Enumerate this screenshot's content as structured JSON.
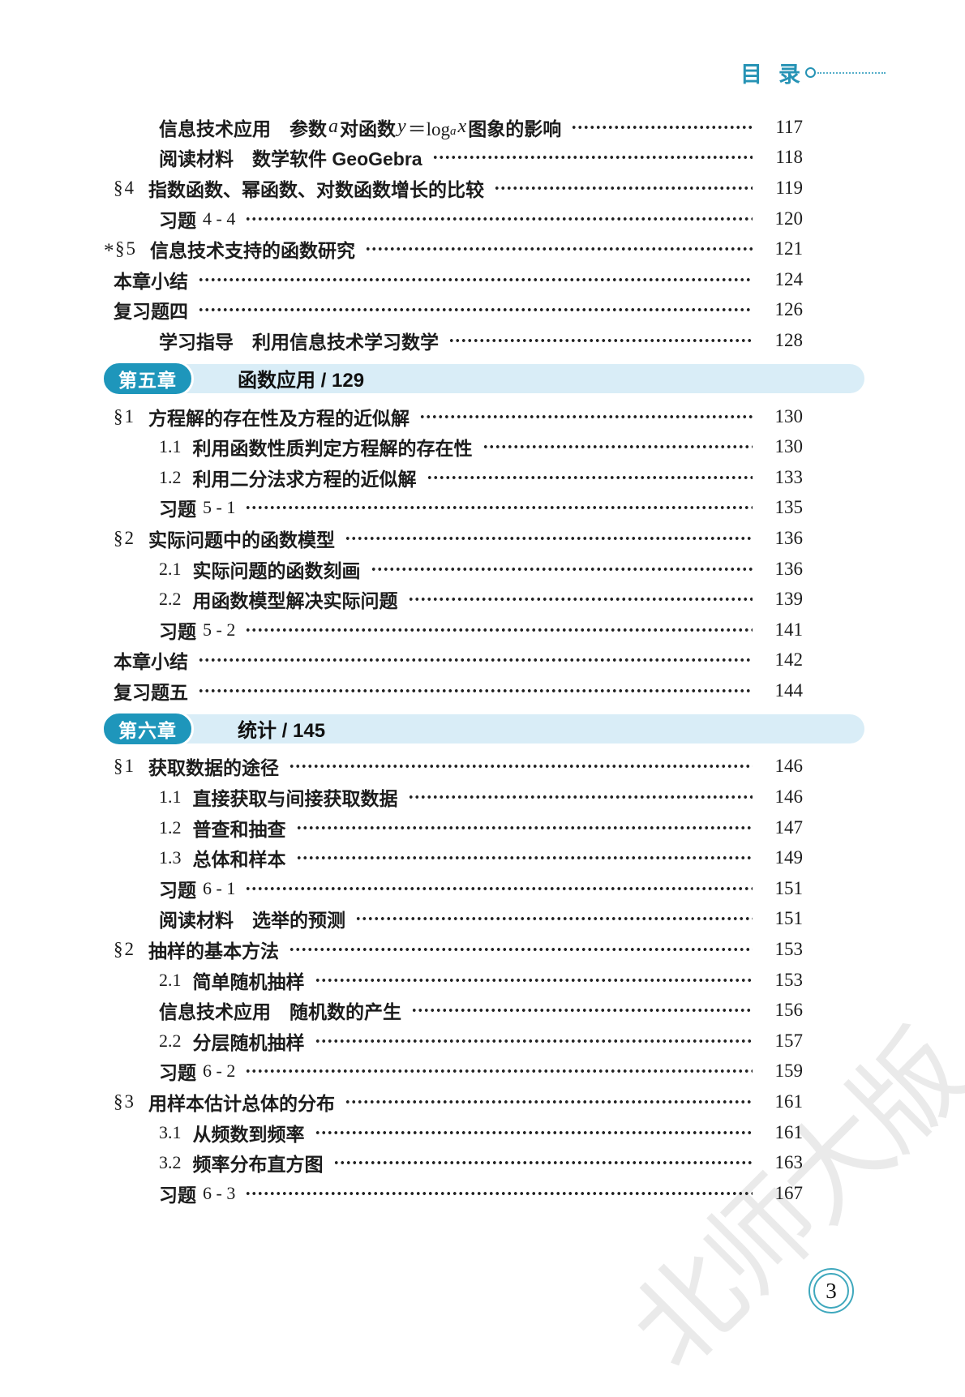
{
  "header": {
    "title": "目录"
  },
  "colors": {
    "accent_teal": "#2693b5",
    "band_light_blue": "#d9edf7",
    "badge_teal": "#1e96bb",
    "page_circle_teal": "#3fa8bd"
  },
  "chapters": {
    "ch5": {
      "badge": "第五章",
      "title": "函数应用 / 129"
    },
    "ch6": {
      "badge": "第六章",
      "title": "统计 / 145"
    }
  },
  "toc": {
    "rows": [
      {
        "t1": "信息技术应用　参数 ",
        "i1": "a",
        "t2": " 对函数 ",
        "i2": "y",
        "t3": "＝log",
        "sub": "a",
        "i3": "x",
        "t4": " 图象的影响",
        "page": "117"
      },
      {
        "title": "阅读材料　数学软件 GeoGebra",
        "page": "118"
      },
      {
        "num": "§4",
        "title": "指数函数、幂函数、对数函数增长的比较",
        "page": "119"
      },
      {
        "label": "习题",
        "num": "4 - 4",
        "page": "120"
      },
      {
        "star": "*",
        "num": "§5",
        "title": "信息技术支持的函数研究",
        "page": "121"
      },
      {
        "title": "本章小结",
        "page": "124"
      },
      {
        "title": "复习题四",
        "page": "126"
      },
      {
        "title": "学习指导　利用信息技术学习数学",
        "page": "128"
      },
      {
        "num": "§1",
        "title": "方程解的存在性及方程的近似解",
        "page": "130"
      },
      {
        "num": "1.1",
        "title": "利用函数性质判定方程解的存在性",
        "page": "130"
      },
      {
        "num": "1.2",
        "title": "利用二分法求方程的近似解",
        "page": "133"
      },
      {
        "label": "习题",
        "num": "5 - 1",
        "page": "135"
      },
      {
        "num": "§2",
        "title": "实际问题中的函数模型",
        "page": "136"
      },
      {
        "num": "2.1",
        "title": "实际问题的函数刻画",
        "page": "136"
      },
      {
        "num": "2.2",
        "title": "用函数模型解决实际问题",
        "page": "139"
      },
      {
        "label": "习题",
        "num": "5 - 2",
        "page": "141"
      },
      {
        "title": "本章小结",
        "page": "142"
      },
      {
        "title": "复习题五",
        "page": "144"
      },
      {
        "num": "§1",
        "title": "获取数据的途径",
        "page": "146"
      },
      {
        "num": "1.1",
        "title": "直接获取与间接获取数据",
        "page": "146"
      },
      {
        "num": "1.2",
        "title": "普查和抽查",
        "page": "147"
      },
      {
        "num": "1.3",
        "title": "总体和样本",
        "page": "149"
      },
      {
        "label": "习题",
        "num": "6 - 1",
        "page": "151"
      },
      {
        "title": "阅读材料　选举的预测",
        "page": "151"
      },
      {
        "num": "§2",
        "title": "抽样的基本方法",
        "page": "153"
      },
      {
        "num": "2.1",
        "title": "简单随机抽样",
        "page": "153"
      },
      {
        "title": "信息技术应用　随机数的产生",
        "page": "156"
      },
      {
        "num": "2.2",
        "title": "分层随机抽样",
        "page": "157"
      },
      {
        "label": "习题",
        "num": "6 - 2",
        "page": "159"
      },
      {
        "num": "§3",
        "title": "用样本估计总体的分布",
        "page": "161"
      },
      {
        "num": "3.1",
        "title": "从频数到频率",
        "page": "161"
      },
      {
        "num": "3.2",
        "title": "频率分布直方图",
        "page": "163"
      },
      {
        "label": "习题",
        "num": "6 - 3",
        "page": "167"
      }
    ]
  },
  "footer": {
    "page_number": "3",
    "watermark": "北师大版"
  }
}
